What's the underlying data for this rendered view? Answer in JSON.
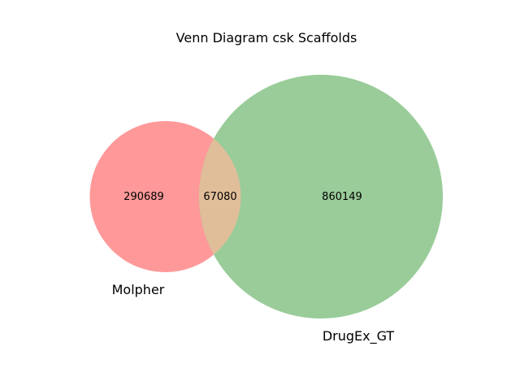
{
  "chart_data": {
    "type": "venn",
    "title": "Venn Diagram csk Scaffolds",
    "sets": [
      {
        "name": "Molpher",
        "only_count": "290689",
        "color": "#ff9999"
      },
      {
        "name": "DrugEx_GT",
        "only_count": "860149",
        "color": "#99cc99"
      }
    ],
    "intersection": {
      "count": "67080",
      "color": "#e0be9a"
    }
  }
}
